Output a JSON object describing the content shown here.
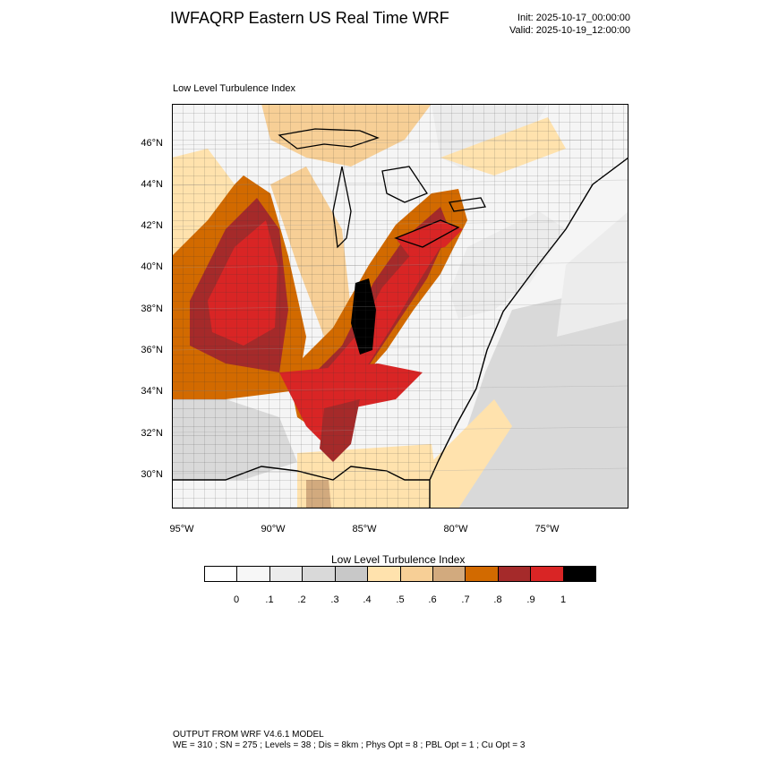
{
  "header": {
    "title": "IWFAQRP Eastern US Real Time WRF",
    "init": "Init: 2025-10-17_00:00:00",
    "valid": "Valid: 2025-10-19_12:00:00"
  },
  "map": {
    "subtitle": "Low Level Turbulence Index",
    "lat_labels": [
      "46°N",
      "44°N",
      "42°N",
      "40°N",
      "38°N",
      "36°N",
      "34°N",
      "32°N",
      "30°N"
    ],
    "lon_labels": [
      "95°W",
      "90°W",
      "85°W",
      "80°W",
      "75°W"
    ]
  },
  "legend": {
    "title": "Low Level Turbulence Index",
    "labels": [
      "0",
      ".1",
      ".2",
      ".3",
      ".4",
      ".5",
      ".6",
      ".7",
      ".8",
      ".9",
      "1"
    ],
    "colors": [
      "#ffffff",
      "#f7f7f7",
      "#ececec",
      "#d9d9d9",
      "#ffe2ad",
      "#f7cf96",
      "#d2aa7e",
      "#d26a00",
      "#a52a2a",
      "#d92525",
      "#000000"
    ]
  },
  "footer": {
    "line1": "OUTPUT FROM WRF V4.6.1 MODEL",
    "line2": "WE = 310 ; SN = 275 ; Levels = 38 ; Dis = 8km ; Phys Opt = 8 ; PBL Opt = 1 ; Cu Opt = 3"
  }
}
